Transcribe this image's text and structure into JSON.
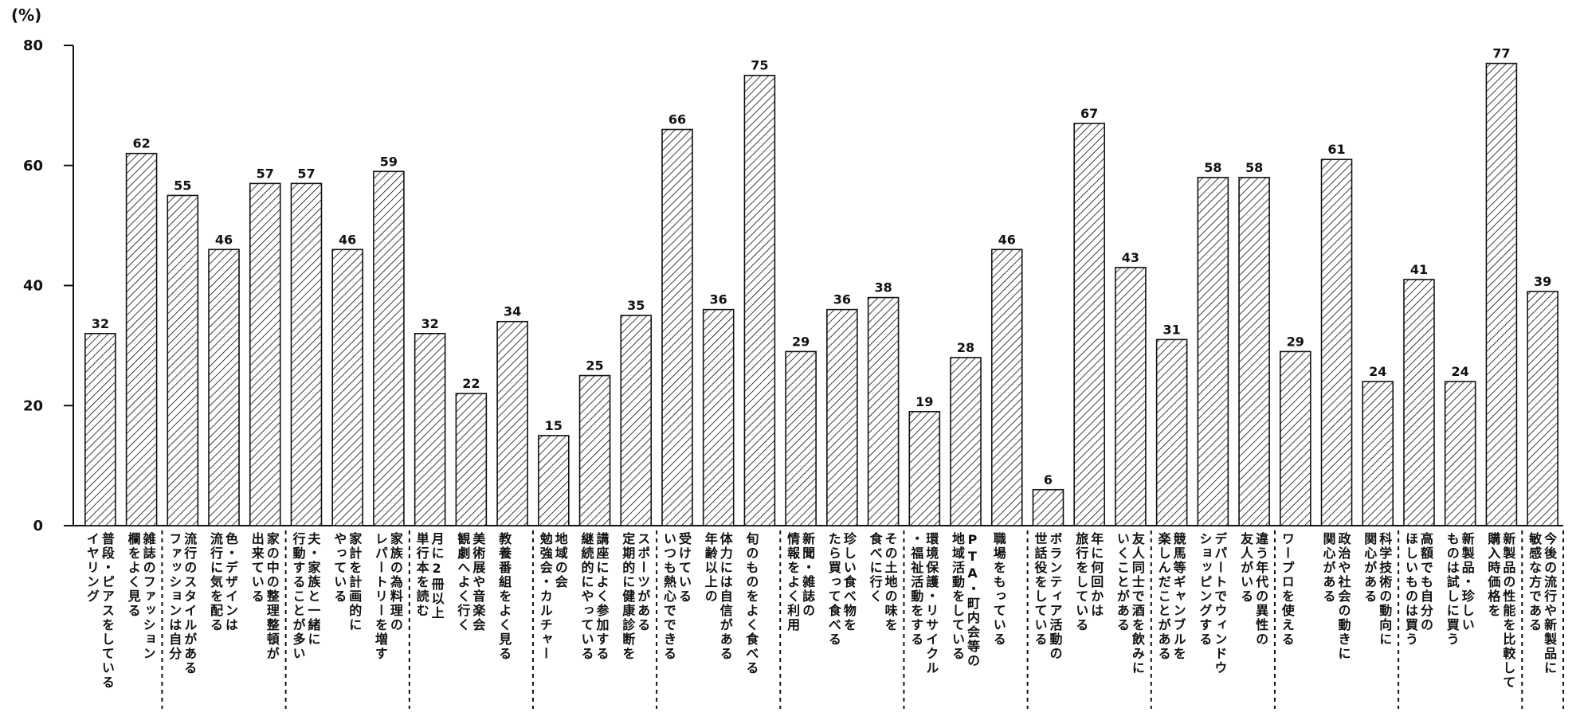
{
  "chart_data": {
    "type": "bar",
    "unit_label": "(%)",
    "ylim": [
      0,
      80
    ],
    "yticks": [
      0,
      20,
      40,
      60,
      80
    ],
    "grid": false,
    "legend": "none",
    "bar_style": "diagonal-hatch",
    "colors": {
      "bar_fill": "#ffffff",
      "hatch": "#111111",
      "axis": "#111111",
      "separator": "#111111"
    },
    "categories": [
      "普段・ピアスをしている\nイヤリング",
      "雑誌のファッション\n欄をよく見る",
      "流行のスタイルがある\nファッションは自分",
      "色・デザインは\n流行に気を配る",
      "家の中の整理整頓が\n出来ている",
      "夫・家族と一緒に\n行動することが多い",
      "家計を計画的に\nやっている",
      "家族の為料理の\nレパートリーを増す",
      "月に2冊以上\n単行本を読む",
      "美術展や音楽会\n観劇へよく行く",
      "教養番組をよく見る",
      "地域の会\n勉強会・カルチャー",
      "講座によく参加する\n継続的にやっている",
      "スポーツがある\n定期的に健康診断を",
      "受けている\nいつも熱心でできる",
      "体力には自信がある\n年齢以上の",
      "旬のものをよく食べる",
      "新聞・雑誌の\n情報をよく利用",
      "珍しい食べ物を\nたら買って食べる",
      "その土地の味を\n食べに行く",
      "環境保護・リサイクル\n・福祉活動をする",
      "PTA・町内会等の\n地域活動をしている",
      "職場をもっている",
      "ボランティア活動の\n世話役をしている",
      "年に何回かは\n旅行をしている",
      "友人同士で酒を飲みに\nいくことがある",
      "競馬等ギャンブルを\n楽しんだことがある",
      "デパートでウィンドウ\nショッピングする",
      "違う年代の異性の\n友人がいる",
      "ワープロを使える",
      "政治や社会の動きに\n関心がある",
      "科学技術の動向に\n関心がある",
      "高額でも自分の\nほしいものは買う",
      "新製品・珍しい\nものは試しに買う",
      "新製品の性能を比較して\n購入時価格を",
      "今後の流行や新製品に\n敏感な方である"
    ],
    "values": [
      32,
      62,
      55,
      46,
      57,
      57,
      46,
      59,
      32,
      22,
      34,
      15,
      25,
      35,
      66,
      36,
      75,
      29,
      36,
      38,
      19,
      28,
      46,
      6,
      67,
      43,
      31,
      58,
      58,
      29,
      61,
      24,
      41,
      24,
      77,
      39
    ],
    "group_separators_after_index": [
      1,
      4,
      7,
      10,
      13,
      16,
      19,
      22,
      25,
      28,
      31,
      34,
      35
    ]
  }
}
